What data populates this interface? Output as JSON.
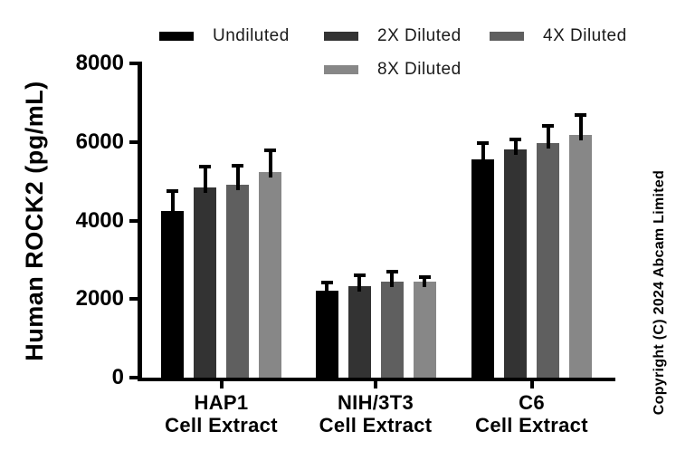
{
  "figure": {
    "copyright": "Copyright (C) 2024 Abcam Limited"
  },
  "chart_data": {
    "type": "bar",
    "title": "",
    "xlabel": "",
    "ylabel": "Human ROCK2 (pg/mL)",
    "y_unit": "pg/mL",
    "ylim": [
      0,
      8000
    ],
    "yticks": [
      0,
      2000,
      4000,
      6000,
      8000
    ],
    "grid": false,
    "legend_position": "top",
    "error_bars": "upper only, black caps",
    "categories": [
      {
        "line1": "HAP1",
        "line2": "Cell Extract"
      },
      {
        "line1": "NIH/3T3",
        "line2": "Cell Extract"
      },
      {
        "line1": "C6",
        "line2": "Cell Extract"
      }
    ],
    "series": [
      {
        "name": "Undiluted",
        "color": "#000000",
        "values": [
          4250,
          2210,
          5560
        ],
        "errors_plus": [
          500,
          220,
          420
        ]
      },
      {
        "name": "2X Diluted",
        "color": "#333333",
        "values": [
          4850,
          2330,
          5820
        ],
        "errors_plus": [
          530,
          270,
          250
        ]
      },
      {
        "name": "4X Diluted",
        "color": "#5f5f5f",
        "values": [
          4920,
          2450,
          5960
        ],
        "errors_plus": [
          480,
          250,
          440
        ]
      },
      {
        "name": "8X Diluted",
        "color": "#878787",
        "values": [
          5230,
          2440,
          6180
        ],
        "errors_plus": [
          560,
          120,
          510
        ]
      }
    ]
  }
}
